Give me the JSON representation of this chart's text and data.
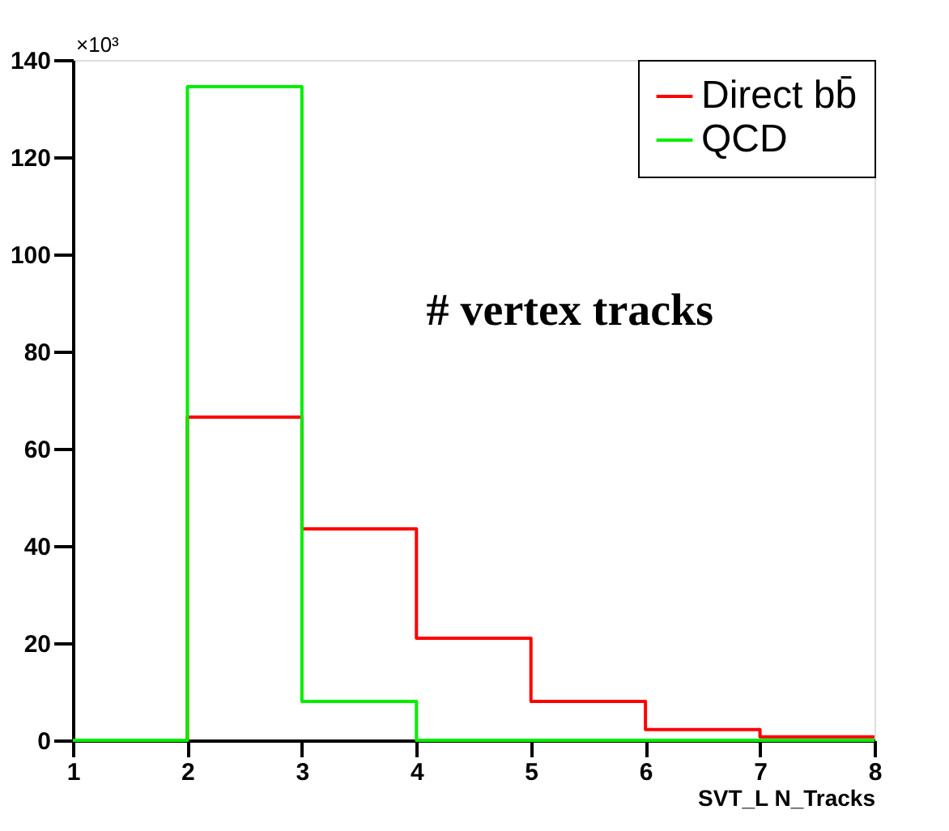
{
  "chart_data": {
    "type": "histogram",
    "bins": [
      1,
      2,
      3,
      4,
      5,
      6,
      7,
      8
    ],
    "series": [
      {
        "name": "Direct bb̄",
        "color": "#ff0000",
        "values": [
          0,
          66.5,
          43.5,
          21,
          8,
          2.2,
          0.7
        ]
      },
      {
        "name": "QCD",
        "color": "#00ee00",
        "values": [
          0,
          134.5,
          8,
          0,
          0,
          0,
          0
        ]
      }
    ],
    "xlabel": "SVT_L N_Tracks",
    "xlim": [
      1,
      8
    ],
    "xticks": [
      1,
      2,
      3,
      4,
      5,
      6,
      7,
      8
    ],
    "ylim": [
      0,
      140
    ],
    "yticks": [
      0,
      20,
      40,
      60,
      80,
      100,
      120,
      140
    ],
    "annotations": [
      "×10³",
      "# vertex tracks"
    ],
    "grid": false,
    "legend": "top right",
    "line_style": "solid"
  }
}
